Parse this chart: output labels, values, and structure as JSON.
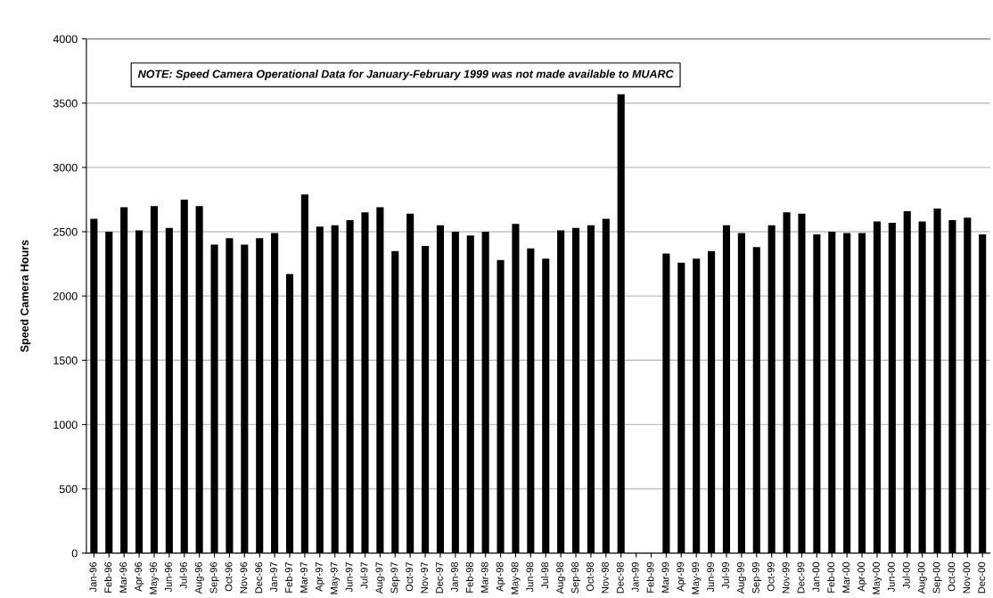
{
  "chart_data": {
    "type": "bar",
    "ylabel": "Speed Camera Hours",
    "categories": [
      "Jan-96",
      "Feb-96",
      "Mar-96",
      "Apr-96",
      "May-96",
      "Jun-96",
      "Jul-96",
      "Aug-96",
      "Sep-96",
      "Oct-96",
      "Nov-96",
      "Dec-96",
      "Jan-97",
      "Feb-97",
      "Mar-97",
      "Apr-97",
      "May-97",
      "Jun-97",
      "Jul-97",
      "Aug-97",
      "Sep-97",
      "Oct-97",
      "Nov-97",
      "Dec-97",
      "Jan-98",
      "Feb-98",
      "Mar-98",
      "Apr-98",
      "May-98",
      "Jun-98",
      "Jul-98",
      "Aug-98",
      "Sep-98",
      "Oct-98",
      "Nov-98",
      "Dec-98",
      "Jan-99",
      "Feb-99",
      "Mar-99",
      "Apr-99",
      "May-99",
      "Jun-99",
      "Jul-99",
      "Aug-99",
      "Sep-99",
      "Oct-99",
      "Nov-99",
      "Dec-99",
      "Jan-00",
      "Feb-00",
      "Mar-00",
      "Apr-00",
      "May-00",
      "Jun-00",
      "Jul-00",
      "Aug-00",
      "Sep-00",
      "Oct-00",
      "Nov-00",
      "Dec-00"
    ],
    "values": [
      2600,
      2500,
      2690,
      2510,
      2700,
      2530,
      2750,
      2700,
      2400,
      2450,
      2400,
      2450,
      2490,
      2170,
      2790,
      2540,
      2550,
      2590,
      2650,
      2690,
      2350,
      2640,
      2390,
      2550,
      2500,
      2470,
      2500,
      2280,
      2560,
      2370,
      2290,
      2510,
      2530,
      2550,
      2600,
      3570,
      null,
      null,
      2330,
      2260,
      2290,
      2350,
      2550,
      2490,
      2380,
      2550,
      2650,
      2640,
      2480,
      2500,
      2490,
      2490,
      2580,
      2570,
      2660,
      2580,
      2680,
      2590,
      2610,
      2480
    ],
    "color": "#000000",
    "ylim": [
      0,
      4000
    ],
    "yticks": [
      0,
      500,
      1000,
      1500,
      2000,
      2500,
      3000,
      3500,
      4000
    ],
    "grid": "y",
    "annotations": [
      "NOTE: Speed Camera Operational Data for January-February 1999 was not made available to MUARC"
    ]
  }
}
